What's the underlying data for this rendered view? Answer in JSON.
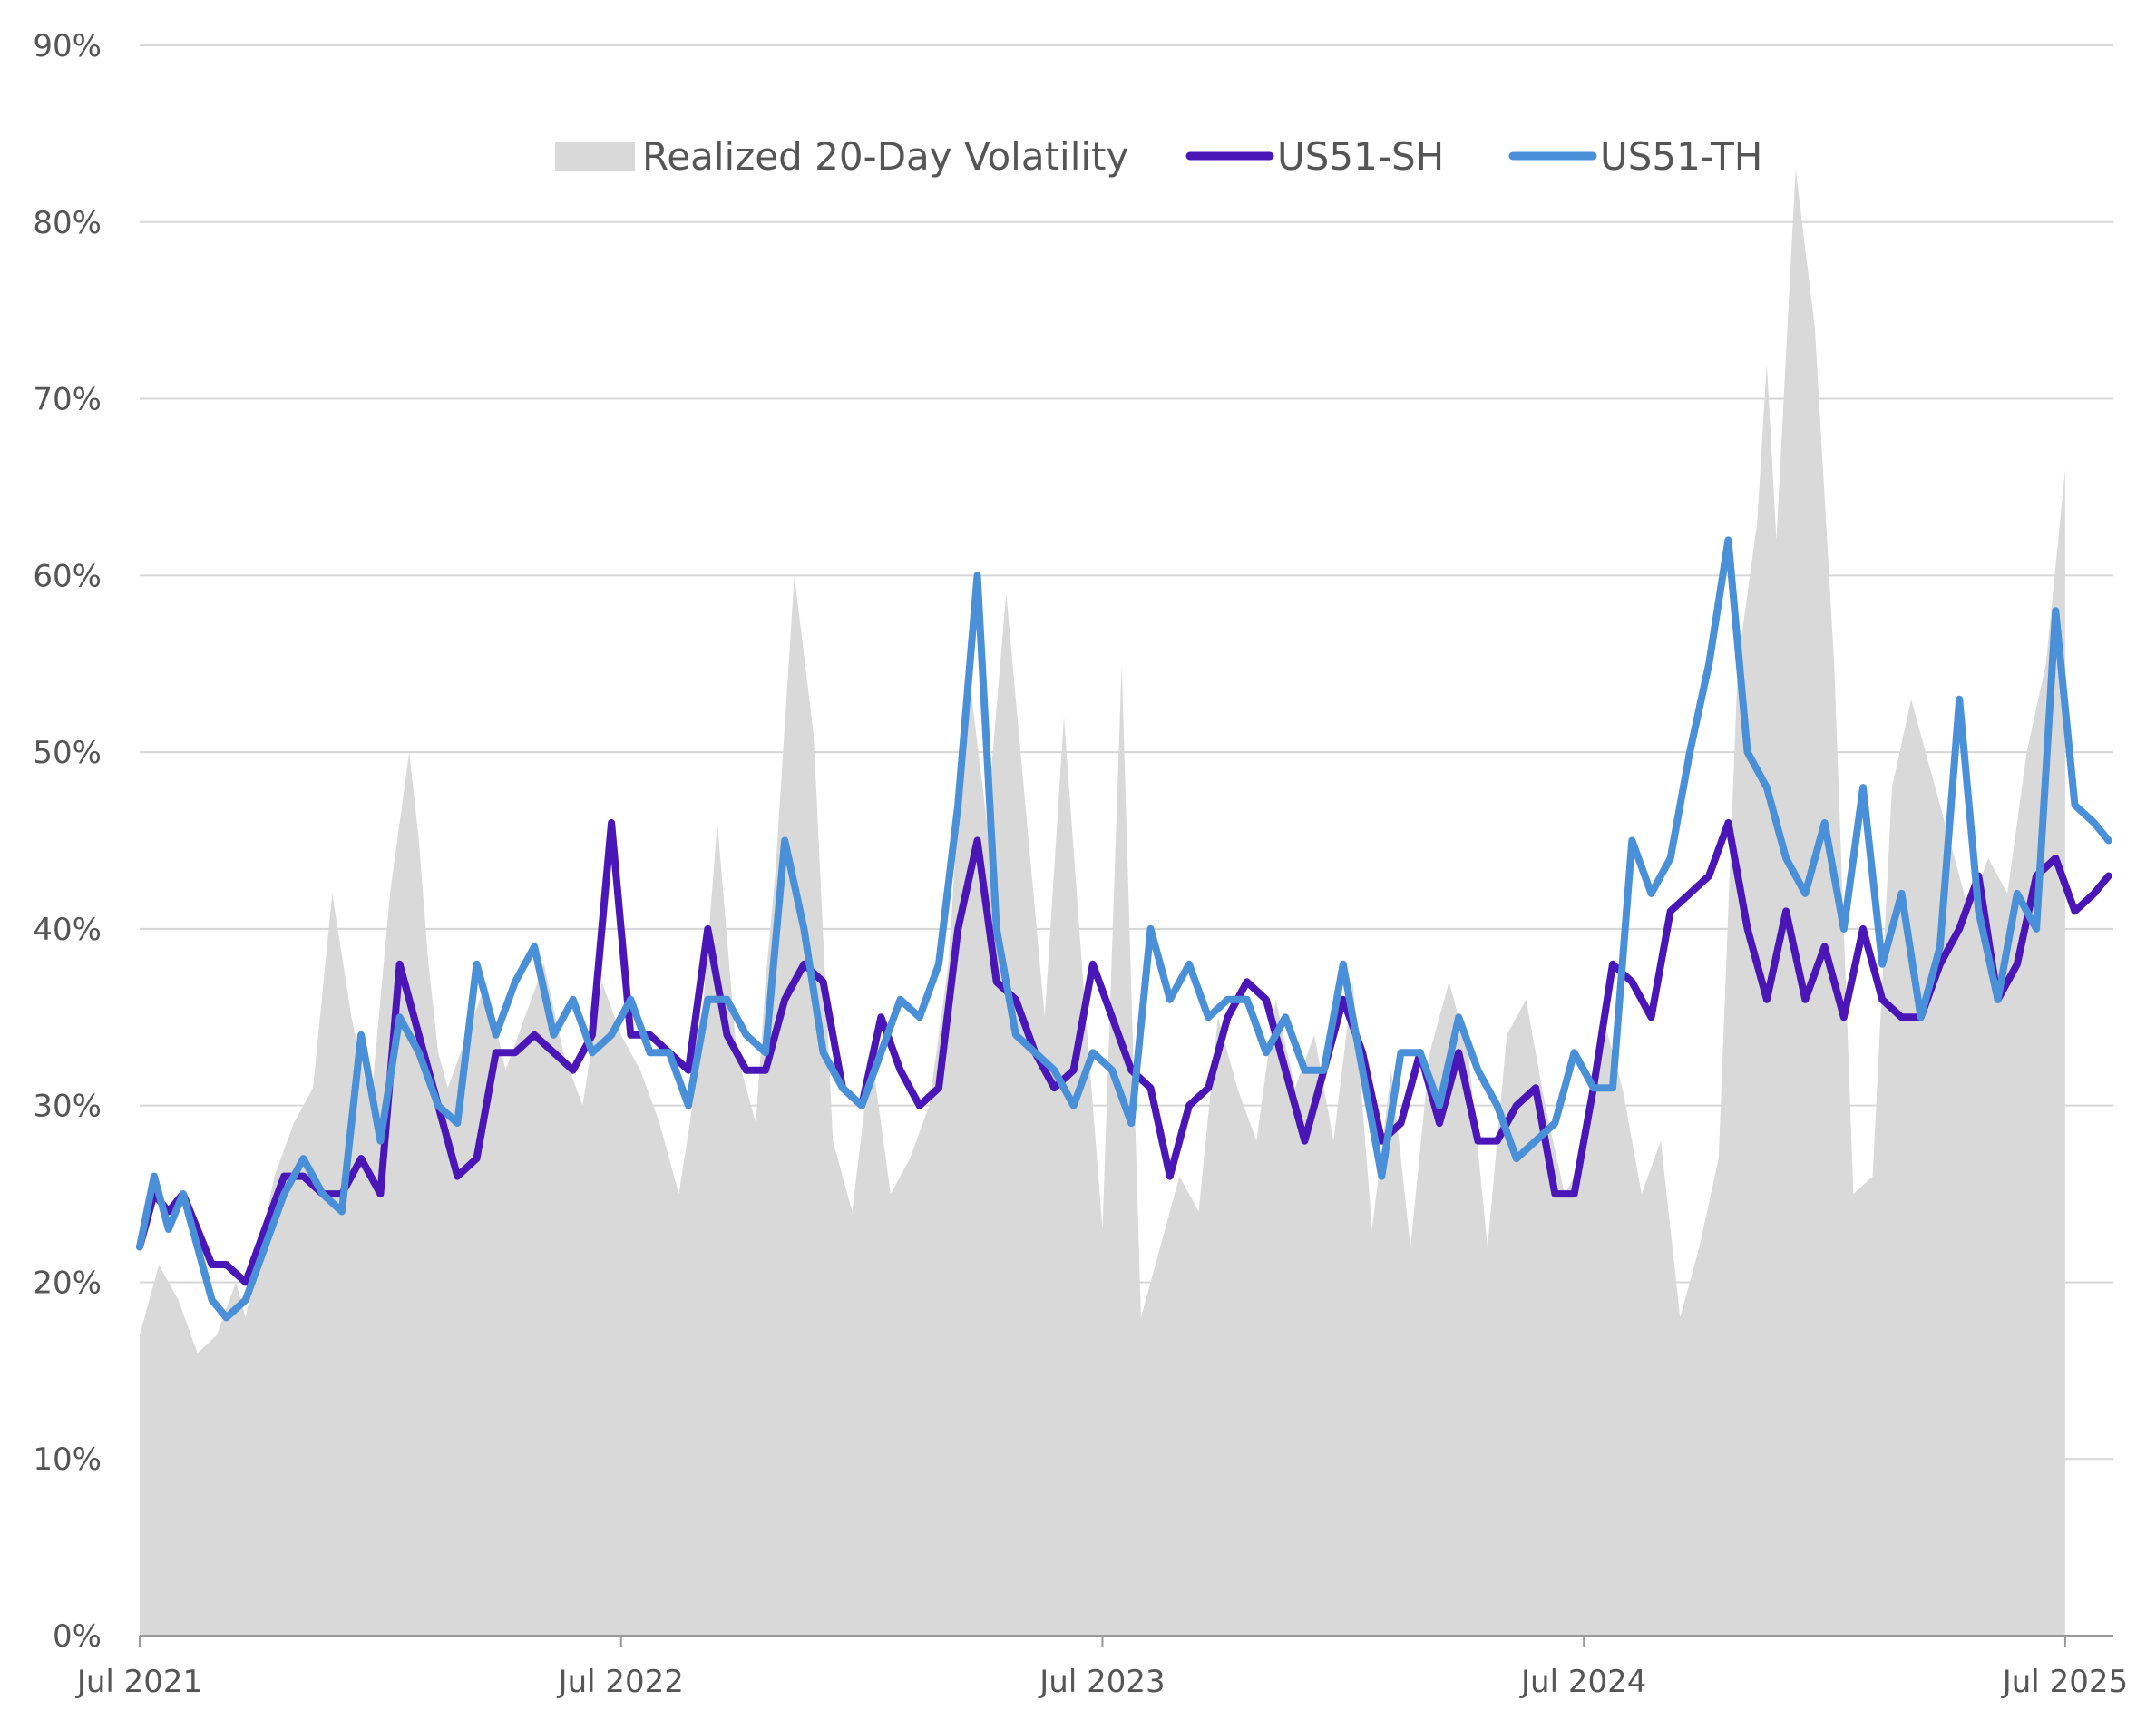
{
  "chart_data": {
    "type": "line",
    "title": "",
    "xlabel": "",
    "ylabel": "",
    "ylim": [
      0,
      90
    ],
    "xlim": [
      2021.5,
      2025.6
    ],
    "y_ticks": [
      "0%",
      "10%",
      "20%",
      "30%",
      "40%",
      "50%",
      "60%",
      "70%",
      "80%",
      "90%"
    ],
    "x_ticks": [
      {
        "label": "Jul 2021",
        "x": 2021.5
      },
      {
        "label": "Jul 2022",
        "x": 2022.5
      },
      {
        "label": "Jul 2023",
        "x": 2023.5
      },
      {
        "label": "Jul 2024",
        "x": 2024.5
      },
      {
        "label": "Jul 2025",
        "x": 2025.5
      }
    ],
    "grid": true,
    "legend_position": "top-center",
    "colors": {
      "realized": "#d9d9d9",
      "sh": "#4b16b8",
      "th": "#4a90d9",
      "grid": "#d6d6d6",
      "axis": "#999999",
      "text": "#555555"
    },
    "series": [
      {
        "name": "Realized 20-Day Volatility",
        "kind": "area",
        "x": [
          2021.5,
          2021.54,
          2021.58,
          2021.62,
          2021.66,
          2021.7,
          2021.72,
          2021.75,
          2021.78,
          2021.82,
          2021.86,
          2021.9,
          2021.94,
          2021.98,
          2022.02,
          2022.06,
          2022.08,
          2022.1,
          2022.12,
          2022.14,
          2022.18,
          2022.22,
          2022.26,
          2022.3,
          2022.34,
          2022.38,
          2022.42,
          2022.46,
          2022.5,
          2022.54,
          2022.58,
          2022.62,
          2022.66,
          2022.7,
          2022.74,
          2022.78,
          2022.8,
          2022.82,
          2022.86,
          2022.9,
          2022.94,
          2022.98,
          2023.02,
          2023.06,
          2023.1,
          2023.14,
          2023.18,
          2023.22,
          2023.26,
          2023.3,
          2023.34,
          2023.38,
          2023.42,
          2023.46,
          2023.5,
          2023.54,
          2023.58,
          2023.62,
          2023.66,
          2023.7,
          2023.74,
          2023.78,
          2023.82,
          2023.86,
          2023.9,
          2023.94,
          2023.98,
          2024.02,
          2024.06,
          2024.1,
          2024.14,
          2024.18,
          2024.22,
          2024.26,
          2024.3,
          2024.34,
          2024.38,
          2024.42,
          2024.46,
          2024.5,
          2024.54,
          2024.58,
          2024.62,
          2024.66,
          2024.7,
          2024.74,
          2024.78,
          2024.82,
          2024.86,
          2024.88,
          2024.9,
          2024.94,
          2024.98,
          2025.02,
          2025.06,
          2025.1,
          2025.14,
          2025.18,
          2025.22,
          2025.26,
          2025.3,
          2025.34,
          2025.38,
          2025.42,
          2025.46,
          2025.5
        ],
        "values": [
          17,
          21,
          19,
          16,
          17,
          20,
          18,
          22,
          26,
          29,
          31,
          42,
          35,
          30,
          42,
          50,
          45,
          38,
          33,
          31,
          34,
          37,
          32,
          35,
          38,
          33,
          30,
          37,
          34,
          32,
          29,
          25,
          32,
          46,
          33,
          29,
          37,
          43,
          60,
          51,
          28,
          24,
          33,
          25,
          27,
          30,
          38,
          55,
          46,
          59,
          47,
          35,
          52,
          37,
          23,
          55,
          18,
          22,
          26,
          24,
          35,
          31,
          28,
          36,
          31,
          34,
          28,
          37,
          23,
          32,
          22,
          33,
          37,
          33,
          22,
          34,
          36,
          30,
          25,
          27,
          35,
          31,
          25,
          28,
          18,
          22,
          27,
          55,
          63,
          72,
          62,
          83,
          74,
          55,
          25,
          26,
          48,
          53,
          49,
          45,
          41,
          44,
          42,
          50,
          55,
          66
        ]
      },
      {
        "name": "US51-SH",
        "kind": "line",
        "x": [
          2021.5,
          2021.53,
          2021.56,
          2021.59,
          2021.62,
          2021.65,
          2021.68,
          2021.72,
          2021.76,
          2021.8,
          2021.84,
          2021.88,
          2021.92,
          2021.96,
          2022.0,
          2022.04,
          2022.08,
          2022.12,
          2022.16,
          2022.2,
          2022.24,
          2022.28,
          2022.32,
          2022.36,
          2022.4,
          2022.44,
          2022.48,
          2022.52,
          2022.56,
          2022.6,
          2022.64,
          2022.68,
          2022.72,
          2022.76,
          2022.8,
          2022.84,
          2022.88,
          2022.92,
          2022.96,
          2023.0,
          2023.04,
          2023.08,
          2023.12,
          2023.16,
          2023.2,
          2023.24,
          2023.28,
          2023.32,
          2023.36,
          2023.4,
          2023.44,
          2023.48,
          2023.52,
          2023.56,
          2023.6,
          2023.64,
          2023.68,
          2023.72,
          2023.76,
          2023.8,
          2023.84,
          2023.88,
          2023.92,
          2023.96,
          2024.0,
          2024.04,
          2024.08,
          2024.12,
          2024.16,
          2024.2,
          2024.24,
          2024.28,
          2024.32,
          2024.36,
          2024.4,
          2024.44,
          2024.48,
          2024.52,
          2024.56,
          2024.6,
          2024.64,
          2024.68,
          2024.72,
          2024.76,
          2024.8,
          2024.84,
          2024.88,
          2024.92,
          2024.96,
          2025.0,
          2025.04,
          2025.08,
          2025.12,
          2025.16,
          2025.2,
          2025.24,
          2025.28,
          2025.32,
          2025.36,
          2025.4,
          2025.44,
          2025.48,
          2025.52,
          2025.56,
          2025.59
        ],
        "values": [
          22,
          25,
          24,
          25,
          23,
          21,
          21,
          20,
          23,
          26,
          26,
          25,
          25,
          27,
          25,
          38,
          34,
          30,
          26,
          27,
          33,
          33,
          34,
          33,
          32,
          34,
          46,
          34,
          34,
          33,
          32,
          40,
          34,
          32,
          32,
          36,
          38,
          37,
          31,
          30,
          35,
          32,
          30,
          31,
          40,
          45,
          37,
          36,
          33,
          31,
          32,
          38,
          35,
          32,
          31,
          26,
          30,
          31,
          35,
          37,
          36,
          32,
          28,
          32,
          36,
          33,
          28,
          29,
          33,
          29,
          33,
          28,
          28,
          30,
          31,
          25,
          25,
          31,
          38,
          37,
          35,
          41,
          42,
          43,
          46,
          40,
          36,
          41,
          36,
          39,
          35,
          40,
          36,
          35,
          35,
          38,
          40,
          43,
          36,
          38,
          43,
          44,
          41,
          42,
          43
        ]
      },
      {
        "name": "US51-TH",
        "kind": "line",
        "x": [
          2021.5,
          2021.53,
          2021.56,
          2021.59,
          2021.62,
          2021.65,
          2021.68,
          2021.72,
          2021.76,
          2021.8,
          2021.84,
          2021.88,
          2021.92,
          2021.96,
          2022.0,
          2022.04,
          2022.08,
          2022.12,
          2022.16,
          2022.2,
          2022.24,
          2022.28,
          2022.32,
          2022.36,
          2022.4,
          2022.44,
          2022.48,
          2022.52,
          2022.56,
          2022.6,
          2022.64,
          2022.68,
          2022.72,
          2022.76,
          2022.8,
          2022.84,
          2022.88,
          2022.92,
          2022.96,
          2023.0,
          2023.04,
          2023.08,
          2023.12,
          2023.16,
          2023.2,
          2023.24,
          2023.28,
          2023.32,
          2023.36,
          2023.4,
          2023.44,
          2023.48,
          2023.52,
          2023.56,
          2023.6,
          2023.64,
          2023.68,
          2023.72,
          2023.76,
          2023.8,
          2023.84,
          2023.88,
          2023.92,
          2023.96,
          2024.0,
          2024.04,
          2024.08,
          2024.12,
          2024.16,
          2024.2,
          2024.24,
          2024.28,
          2024.32,
          2024.36,
          2024.4,
          2024.44,
          2024.48,
          2024.52,
          2024.56,
          2024.6,
          2024.64,
          2024.68,
          2024.72,
          2024.76,
          2024.8,
          2024.84,
          2024.88,
          2024.92,
          2024.96,
          2025.0,
          2025.04,
          2025.08,
          2025.12,
          2025.16,
          2025.2,
          2025.24,
          2025.28,
          2025.32,
          2025.36,
          2025.4,
          2025.44,
          2025.48,
          2025.52,
          2025.56,
          2025.59
        ],
        "values": [
          22,
          26,
          23,
          25,
          22,
          19,
          18,
          19,
          22,
          25,
          27,
          25,
          24,
          34,
          28,
          35,
          33,
          30,
          29,
          38,
          34,
          37,
          39,
          34,
          36,
          33,
          34,
          36,
          33,
          33,
          30,
          36,
          36,
          34,
          33,
          45,
          40,
          33,
          31,
          30,
          33,
          36,
          35,
          38,
          47,
          60,
          40,
          34,
          33,
          32,
          30,
          33,
          32,
          29,
          40,
          36,
          38,
          35,
          36,
          36,
          33,
          35,
          32,
          32,
          38,
          32,
          26,
          33,
          33,
          30,
          35,
          32,
          30,
          27,
          28,
          29,
          33,
          31,
          31,
          45,
          42,
          44,
          50,
          55,
          62,
          50,
          48,
          44,
          42,
          46,
          40,
          48,
          38,
          42,
          35,
          39,
          53,
          41,
          36,
          42,
          40,
          58,
          47,
          46,
          45
        ]
      }
    ]
  }
}
